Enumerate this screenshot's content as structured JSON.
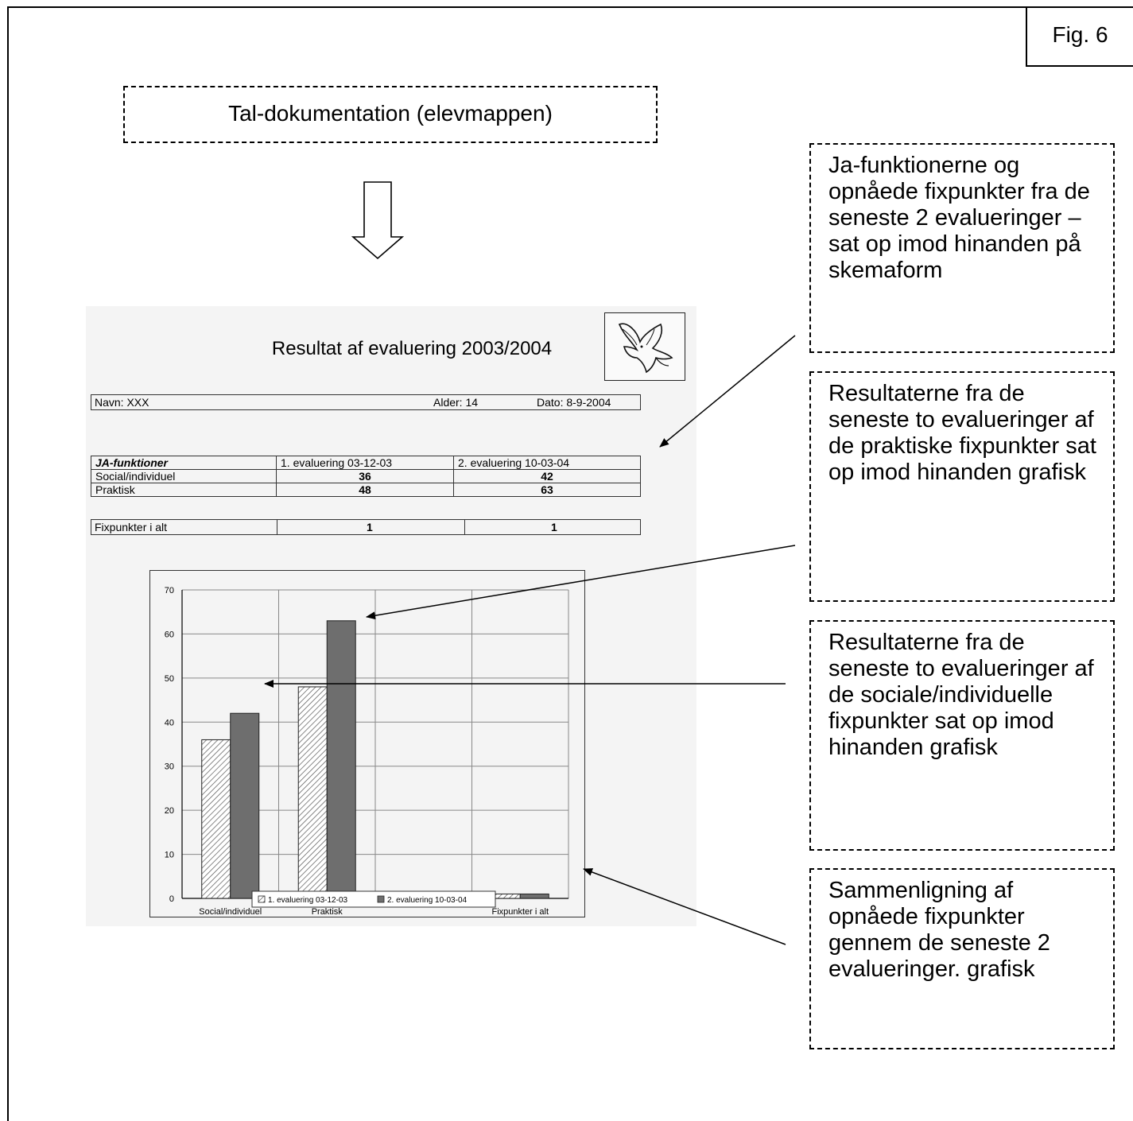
{
  "fig_label": "Fig. 6",
  "header_box": "Tal-dokumentation (elevmappen)",
  "notes": [
    "Ja-funktionerne og opnåede fixpunkter fra de seneste 2 evalueringer – sat op imod hinanden på skemaform",
    "Resultaterne fra de seneste to evalueringer af de praktiske fixpunkter sat op imod hinanden grafisk",
    "Resultaterne fra de seneste to evalueringer af de sociale/individuelle fixpunkter sat op imod hinanden grafisk",
    "Sammenligning af opnåede fixpunkter gennem de seneste 2 evalueringer. grafisk"
  ],
  "report": {
    "title": "Resultat af evaluering 2003/2004",
    "name": "Navn: XXX",
    "age": "Alder: 14",
    "date": "Dato: 8-9-2004",
    "table": {
      "headers": [
        "JA-funktioner",
        "1. evaluering 03-12-03",
        "2. evaluering 10-03-04"
      ],
      "rows": [
        [
          "Social/individuel",
          "36",
          "42"
        ],
        [
          "Praktisk",
          "48",
          "63"
        ]
      ]
    },
    "fix_row": [
      "Fixpunkter i alt",
      "1",
      "1"
    ]
  },
  "chart_data": {
    "type": "bar",
    "categories": [
      "Social/individuel",
      "Praktisk",
      "",
      "Fixpunkter i alt"
    ],
    "series": [
      {
        "name": "1. evaluering 03-12-03",
        "values": [
          36,
          48,
          null,
          1
        ],
        "pattern": "hatched"
      },
      {
        "name": "2. evaluering 10-03-04",
        "values": [
          42,
          63,
          null,
          1
        ],
        "pattern": "solid"
      }
    ],
    "yticks": [
      0,
      10,
      20,
      30,
      40,
      50,
      60,
      70
    ],
    "ylim": [
      0,
      70
    ],
    "grid": true,
    "legend": "bottom",
    "colors": {
      "solid": "#6e6e6e",
      "hatch": "#555555"
    }
  }
}
